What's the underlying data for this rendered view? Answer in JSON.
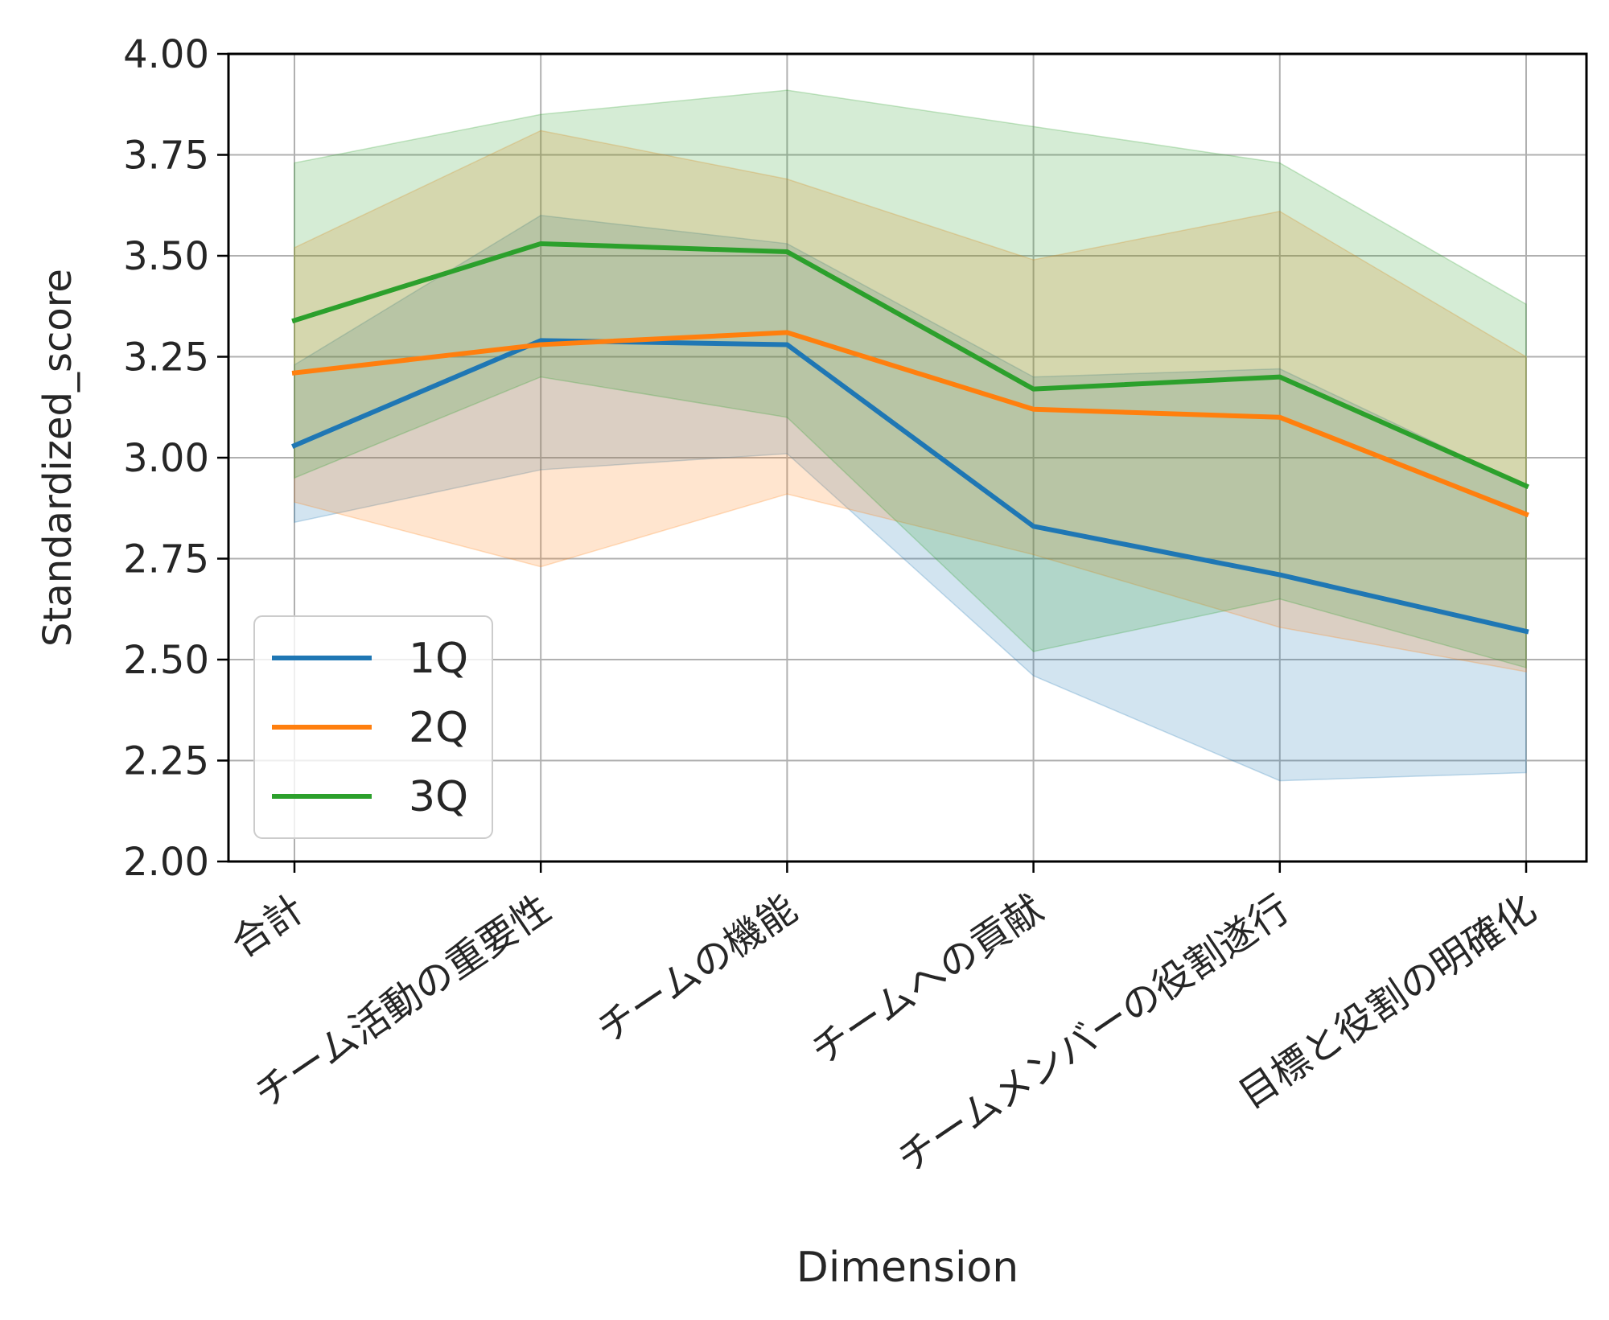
{
  "chart_data": {
    "type": "line",
    "title": "",
    "xlabel": "Dimension",
    "ylabel": "Standardized_score",
    "categories": [
      "合計",
      "チーム活動の重要性",
      "チームの機能",
      "チームへの貢献",
      "チームメンバーの役割遂行",
      "目標と役割の明確化"
    ],
    "ylim": [
      2.0,
      4.0
    ],
    "yticks": [
      "2.00",
      "2.25",
      "2.50",
      "2.75",
      "3.00",
      "3.25",
      "3.50",
      "3.75",
      "4.00"
    ],
    "grid": true,
    "legend_position": "lower-left",
    "series": [
      {
        "name": "1Q",
        "color": "#1f77b4",
        "values": [
          3.03,
          3.29,
          3.28,
          2.83,
          2.71,
          2.57
        ],
        "ci_low": [
          2.84,
          2.97,
          3.01,
          2.46,
          2.2,
          2.22
        ],
        "ci_high": [
          3.23,
          3.6,
          3.53,
          3.2,
          3.22,
          2.93
        ]
      },
      {
        "name": "2Q",
        "color": "#ff7f0e",
        "values": [
          3.21,
          3.28,
          3.31,
          3.12,
          3.1,
          2.86
        ],
        "ci_low": [
          2.89,
          2.73,
          2.91,
          2.76,
          2.58,
          2.47
        ],
        "ci_high": [
          3.52,
          3.81,
          3.69,
          3.49,
          3.61,
          3.25
        ]
      },
      {
        "name": "3Q",
        "color": "#2ca02c",
        "values": [
          3.34,
          3.53,
          3.51,
          3.17,
          3.2,
          2.93
        ],
        "ci_low": [
          2.95,
          3.2,
          3.1,
          2.52,
          2.65,
          2.48
        ],
        "ci_high": [
          3.73,
          3.85,
          3.91,
          3.82,
          3.73,
          3.38
        ]
      }
    ]
  }
}
